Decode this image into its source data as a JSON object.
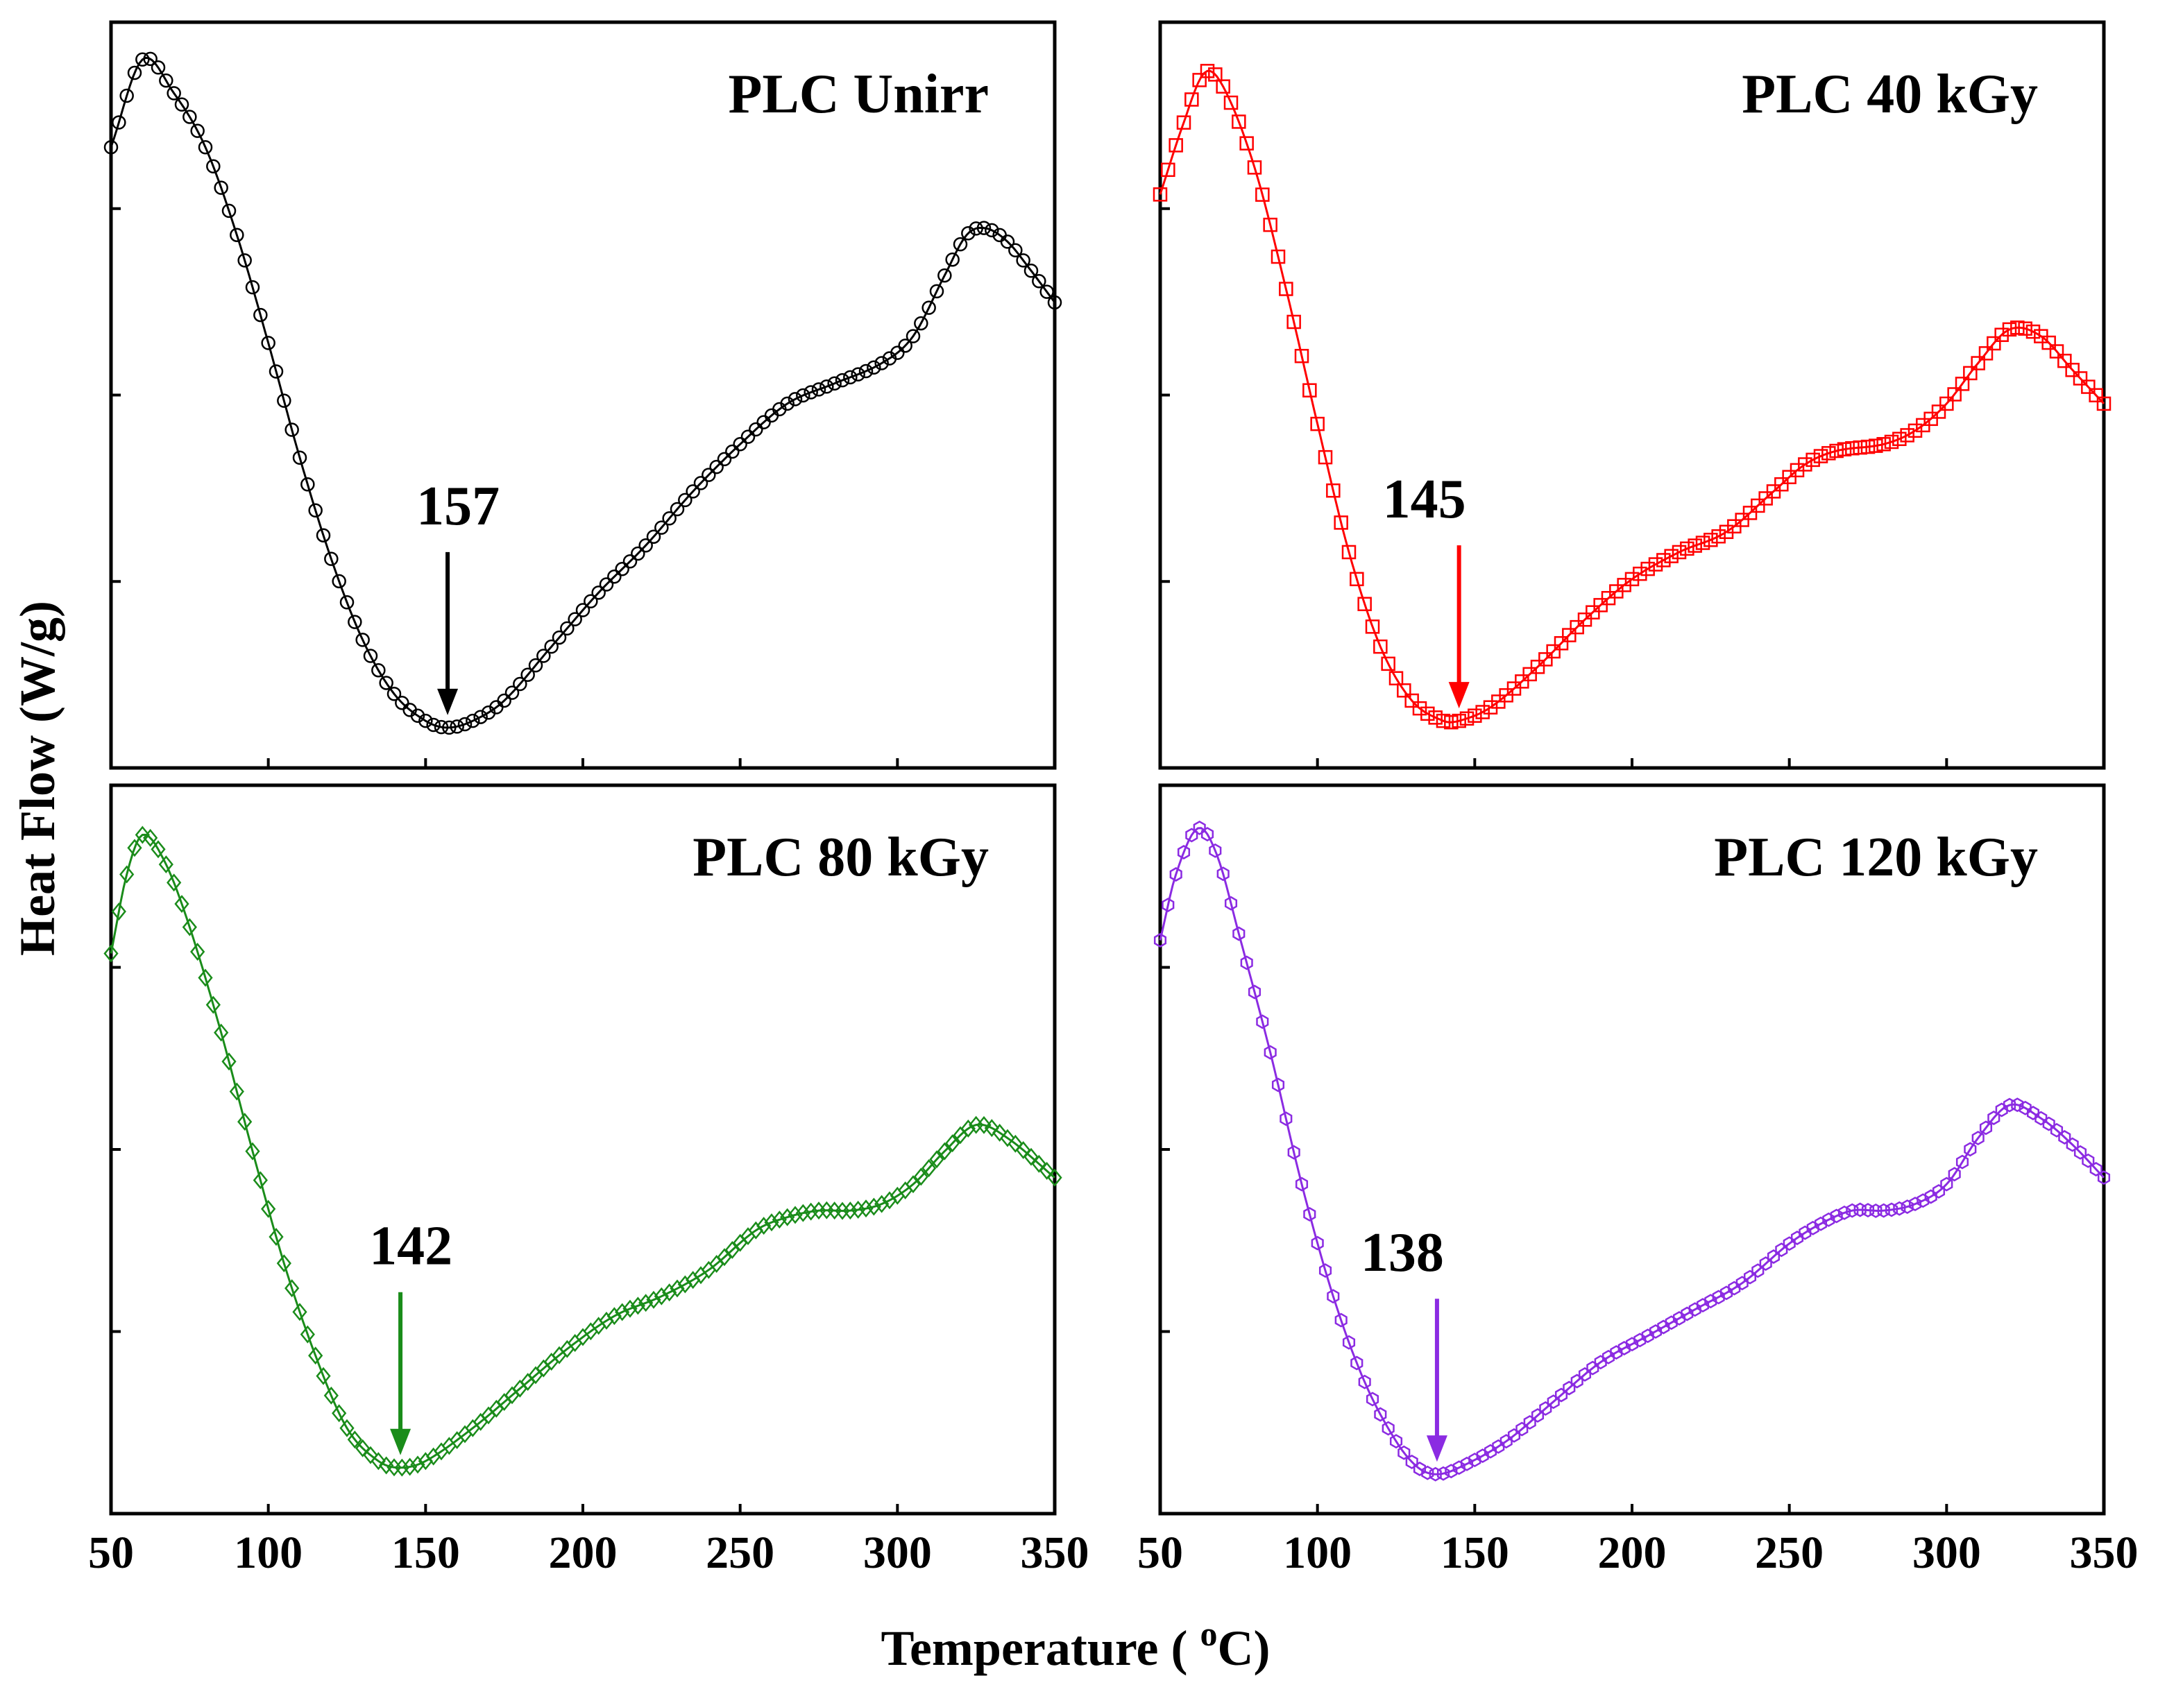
{
  "figure": {
    "ylabel": "Heat Flow (W/g)",
    "xlabel_main": "Temperature ( ",
    "xlabel_sup": "o",
    "xlabel_tail": "C)"
  },
  "chart_data": [
    {
      "type": "scatter",
      "title": "PLC Unirr",
      "color": "#000000",
      "marker": "circle",
      "xlim": [
        50,
        350
      ],
      "ylim": [
        0,
        1
      ],
      "xticks": [
        "50",
        "100",
        "150",
        "200",
        "250",
        "300",
        "350"
      ],
      "show_xtick_labels": false,
      "annotation": {
        "label": "157",
        "x": 157
      },
      "x": [
        50,
        60,
        70,
        80,
        90,
        100,
        110,
        120,
        130,
        140,
        150,
        157,
        165,
        175,
        190,
        205,
        220,
        235,
        250,
        265,
        280,
        295,
        305,
        315,
        322,
        328,
        335,
        342,
        350
      ],
      "y": [
        0.87,
        1.0,
        0.95,
        0.87,
        0.74,
        0.58,
        0.41,
        0.26,
        0.14,
        0.06,
        0.02,
        0.01,
        0.02,
        0.05,
        0.13,
        0.21,
        0.28,
        0.36,
        0.43,
        0.49,
        0.52,
        0.55,
        0.59,
        0.68,
        0.74,
        0.75,
        0.73,
        0.69,
        0.64
      ]
    },
    {
      "type": "scatter",
      "title": "PLC 40 kGy",
      "color": "#ff0000",
      "marker": "square",
      "xlim": [
        50,
        350
      ],
      "ylim": [
        0,
        1
      ],
      "xticks": [
        "50",
        "100",
        "150",
        "200",
        "250",
        "300",
        "350"
      ],
      "show_xtick_labels": false,
      "annotation": {
        "label": "145",
        "x": 145
      },
      "x": [
        50,
        57,
        64,
        70,
        80,
        90,
        100,
        110,
        120,
        130,
        140,
        145,
        155,
        170,
        185,
        200,
        215,
        230,
        245,
        255,
        265,
        280,
        290,
        300,
        310,
        320,
        330,
        340,
        350
      ],
      "y": [
        0.8,
        0.9,
        0.98,
        0.96,
        0.84,
        0.66,
        0.46,
        0.27,
        0.13,
        0.05,
        0.02,
        0.02,
        0.04,
        0.1,
        0.17,
        0.23,
        0.27,
        0.3,
        0.36,
        0.4,
        0.42,
        0.43,
        0.45,
        0.49,
        0.55,
        0.6,
        0.59,
        0.54,
        0.49
      ]
    },
    {
      "type": "scatter",
      "title": "PLC 80 kGy",
      "color": "#1a8c1a",
      "marker": "diamond",
      "xlim": [
        50,
        350
      ],
      "ylim": [
        0,
        1
      ],
      "xticks": [
        "50",
        "100",
        "150",
        "200",
        "250",
        "300",
        "350"
      ],
      "show_xtick_labels": true,
      "annotation": {
        "label": "142",
        "x": 142
      },
      "x": [
        50,
        55,
        60,
        67,
        75,
        85,
        95,
        105,
        115,
        125,
        135,
        142,
        150,
        165,
        180,
        195,
        210,
        225,
        240,
        255,
        265,
        275,
        285,
        295,
        305,
        315,
        325,
        335,
        350
      ],
      "y": [
        0.8,
        0.92,
        0.98,
        0.94,
        0.84,
        0.68,
        0.5,
        0.33,
        0.19,
        0.08,
        0.03,
        0.02,
        0.03,
        0.08,
        0.14,
        0.2,
        0.25,
        0.28,
        0.32,
        0.38,
        0.4,
        0.41,
        0.41,
        0.42,
        0.45,
        0.5,
        0.54,
        0.52,
        0.46
      ]
    },
    {
      "type": "scatter",
      "title": "PLC 120 kGy",
      "color": "#8b2be2",
      "marker": "hexagon",
      "xlim": [
        50,
        350
      ],
      "ylim": [
        0,
        1
      ],
      "xticks": [
        "50",
        "100",
        "150",
        "200",
        "250",
        "300",
        "350"
      ],
      "show_xtick_labels": true,
      "annotation": {
        "label": "138",
        "x": 138
      },
      "x": [
        50,
        55,
        62,
        68,
        75,
        85,
        95,
        105,
        115,
        125,
        132,
        138,
        145,
        160,
        175,
        190,
        205,
        220,
        235,
        250,
        260,
        270,
        280,
        290,
        300,
        310,
        320,
        330,
        340,
        350
      ],
      "y": [
        0.82,
        0.92,
        0.99,
        0.95,
        0.83,
        0.65,
        0.45,
        0.28,
        0.15,
        0.06,
        0.02,
        0.01,
        0.02,
        0.06,
        0.12,
        0.18,
        0.22,
        0.26,
        0.3,
        0.36,
        0.39,
        0.41,
        0.41,
        0.42,
        0.45,
        0.52,
        0.57,
        0.55,
        0.51,
        0.46
      ]
    }
  ]
}
